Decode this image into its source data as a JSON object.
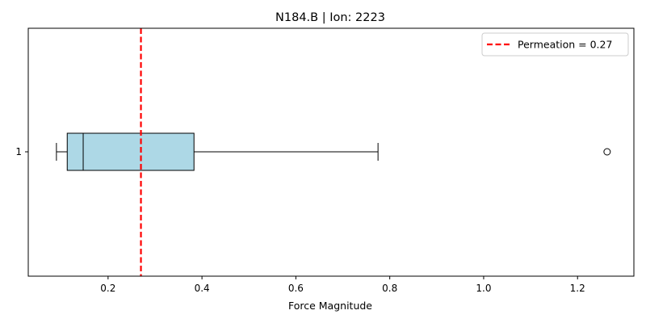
{
  "chart_data": {
    "type": "boxplot",
    "orientation": "horizontal",
    "title": "N184.B | Ion: 2223",
    "xlabel": "Force Magnitude",
    "ylabel": "",
    "xlim": [
      0.03,
      1.32
    ],
    "x_ticks": [
      0.2,
      0.4,
      0.6,
      0.8,
      1.0,
      1.2
    ],
    "x_tick_labels": [
      "0.2",
      "0.4",
      "0.6",
      "0.8",
      "1.0",
      "1.2"
    ],
    "y_tick_labels": [
      "1"
    ],
    "box": {
      "whisker_low": 0.09,
      "q1": 0.113,
      "median": 0.147,
      "q3": 0.383,
      "whisker_high": 0.775,
      "outliers": [
        1.263
      ],
      "fill_color": "#add8e6"
    },
    "reference_line": {
      "value": 0.27,
      "label": "Permeation = 0.27",
      "color": "#ff0000",
      "style": "dashed"
    },
    "grid": false,
    "legend_position": "top-right"
  }
}
